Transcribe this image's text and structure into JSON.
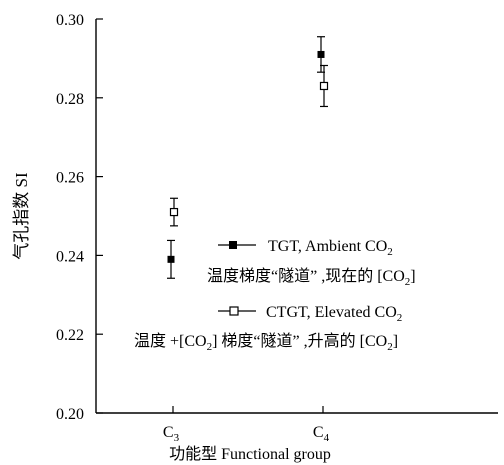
{
  "chart_data": {
    "type": "scatter",
    "ylabel": "气孔指数 SI",
    "xlabel": "功能型 Functional group",
    "categories": [
      "C3",
      "C4"
    ],
    "category_labels": [
      {
        "base": "C",
        "sub": "3"
      },
      {
        "base": "C",
        "sub": "4"
      }
    ],
    "ylim": [
      0.2,
      0.3
    ],
    "yticks": [
      "0.20",
      "0.22",
      "0.24",
      "0.26",
      "0.28",
      "0.30"
    ],
    "grid": false,
    "legend_position": "center-right",
    "series": [
      {
        "name": "TGT, Ambient CO2",
        "legend_en": {
          "text": "TGT, Ambient CO",
          "sub": "2"
        },
        "legend_zh": {
          "prefix": "温度梯度“隧道” ,现在的 [CO",
          "sub": "2",
          "suffix": "]"
        },
        "marker": "filled-square",
        "color": "#000000",
        "values": [
          0.239,
          0.291
        ],
        "error": [
          0.0048,
          0.0045
        ]
      },
      {
        "name": "CTGT, Elevated CO2",
        "legend_en": {
          "text": "CTGT, Elevated CO",
          "sub": "2"
        },
        "legend_zh": {
          "prefix": "温度 +[CO",
          "sub": "2",
          "suffix": "] 梯度“隧道” ,升高的 [CO",
          "sub2": "2",
          "suffix2": "]"
        },
        "marker": "open-square",
        "color": "#000000",
        "values": [
          0.251,
          0.283
        ],
        "error": [
          0.0035,
          0.0052
        ]
      }
    ]
  }
}
